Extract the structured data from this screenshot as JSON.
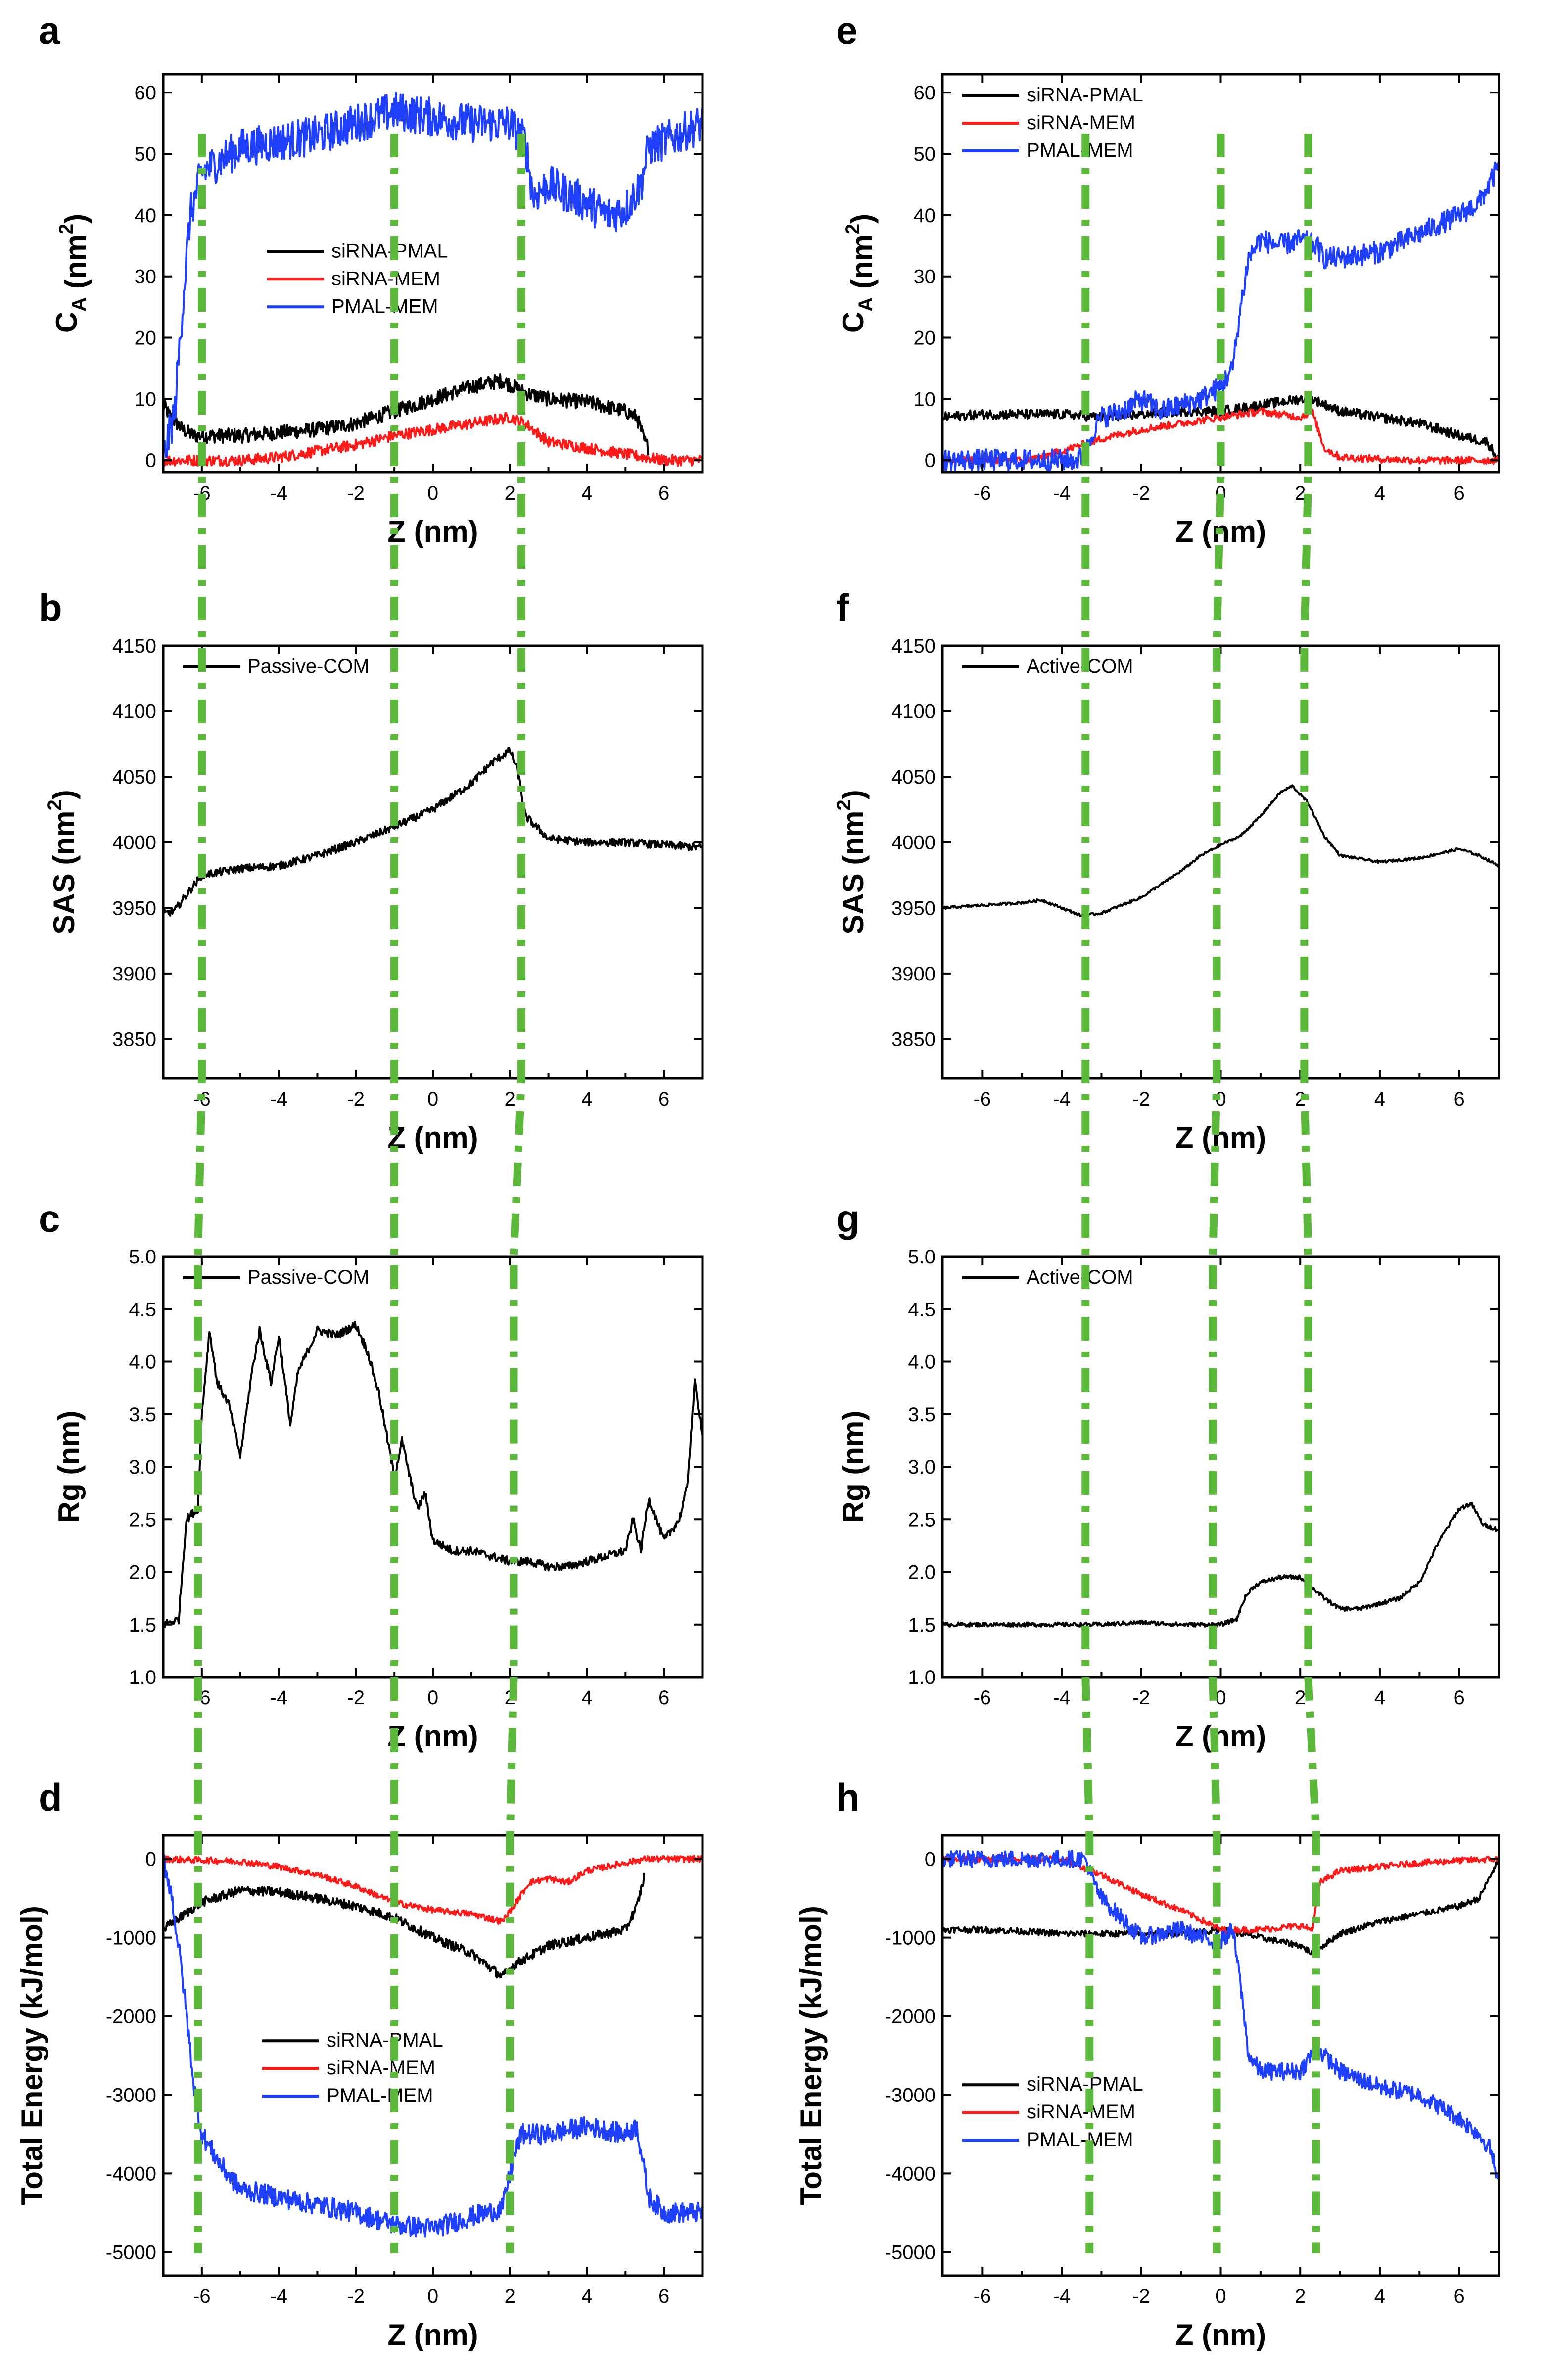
{
  "colors": {
    "siRNA-PMAL": "#000000",
    "siRNA-MEM": "#ff1a1a",
    "PMAL-MEM": "#1f3fff",
    "single": "#000000",
    "guide": "#5cb83a"
  },
  "chart_data": [
    {
      "id": "a",
      "panel_label": "a",
      "type": "line",
      "xlabel": "Z (nm)",
      "ylabel": {
        "base": "C",
        "sub": "A",
        "unit": " (nm",
        "sup": "2",
        "close": ")"
      },
      "xlim": [
        -7,
        7
      ],
      "ylim": [
        -2,
        63
      ],
      "xticks": [
        -6,
        -4,
        -2,
        0,
        2,
        4,
        6
      ],
      "yticks": [
        0,
        10,
        20,
        30,
        40,
        50,
        60
      ],
      "legend_pos": "center-left",
      "series": [
        {
          "name": "siRNA-PMAL",
          "color_key": "siRNA-PMAL",
          "noise": 1.2,
          "x": [
            -7,
            -6.8,
            -6.5,
            -6.2,
            -6,
            -5,
            -4,
            -3,
            -2,
            -1,
            0,
            1,
            1.8,
            2.4,
            3,
            4,
            5,
            5.3,
            5.5,
            5.6
          ],
          "y": [
            9,
            7,
            5,
            4,
            4,
            4,
            4.5,
            5,
            6,
            8,
            10,
            12,
            13,
            11,
            10,
            9.5,
            8,
            7,
            3,
            2
          ]
        },
        {
          "name": "siRNA-MEM",
          "color_key": "siRNA-MEM",
          "noise": 0.9,
          "x": [
            -7,
            -5,
            -4,
            -3,
            -2,
            -1,
            0,
            1,
            2,
            2.4,
            3,
            4,
            5,
            5.5,
            6,
            7
          ],
          "y": [
            0,
            0,
            0.5,
            1.5,
            2.5,
            4,
            5,
            6,
            7,
            6,
            3,
            2,
            1,
            0.5,
            0,
            0
          ]
        },
        {
          "name": "PMAL-MEM",
          "color_key": "PMAL-MEM",
          "noise": 3.2,
          "x": [
            -7,
            -6.7,
            -6.5,
            -6.3,
            -6,
            -5.5,
            -5,
            -4,
            -3,
            -2,
            -1,
            0,
            1,
            2,
            2.4,
            2.6,
            3,
            4,
            4.5,
            5,
            5.4,
            5.6,
            6,
            7
          ],
          "y": [
            0,
            8,
            25,
            40,
            47,
            49,
            51,
            52,
            53,
            55,
            57,
            56,
            55,
            55,
            52,
            43,
            45,
            42,
            40,
            41,
            45,
            51,
            52,
            55
          ]
        }
      ],
      "guides_x": [
        -6,
        -1,
        2.3
      ]
    },
    {
      "id": "b",
      "panel_label": "b",
      "type": "line",
      "xlabel": "Z (nm)",
      "ylabel": {
        "base": "SAS",
        "sub": "",
        "unit": " (nm",
        "sup": "2",
        "close": ")"
      },
      "xlim": [
        -7,
        7
      ],
      "ylim": [
        3820,
        4150
      ],
      "xticks": [
        -6,
        -4,
        -2,
        0,
        2,
        4,
        6
      ],
      "yticks": [
        3850,
        3900,
        3950,
        4000,
        4050,
        4100,
        4150
      ],
      "legend_pos": "top-left",
      "series": [
        {
          "name": "Passive-COM",
          "color_key": "single",
          "noise": 3,
          "x": [
            -7,
            -6.7,
            -6.4,
            -6,
            -5,
            -4,
            -3,
            -2,
            -1,
            0,
            1,
            1.5,
            2,
            2.2,
            2.4,
            3,
            4,
            5,
            6,
            7
          ],
          "y": [
            3945,
            3948,
            3960,
            3975,
            3980,
            3982,
            3990,
            4000,
            4012,
            4025,
            4045,
            4060,
            4070,
            4055,
            4020,
            4003,
            4000,
            4000,
            3998,
            3996
          ]
        }
      ],
      "guides_x": [
        -6,
        -1,
        2.3
      ]
    },
    {
      "id": "c",
      "panel_label": "c",
      "type": "line",
      "xlabel": "Z (nm)",
      "ylabel": {
        "base": "Rg (nm)",
        "sub": "",
        "unit": "",
        "sup": "",
        "close": ""
      },
      "xlim": [
        -7,
        7
      ],
      "ylim": [
        1.0,
        5.0
      ],
      "xticks": [
        -6,
        -4,
        -2,
        0,
        2,
        4,
        6
      ],
      "yticks": [
        1.0,
        1.5,
        2.0,
        2.5,
        3.0,
        3.5,
        4.0,
        4.5,
        5.0
      ],
      "legend_pos": "top-left",
      "series": [
        {
          "name": "Passive-COM",
          "color_key": "single",
          "noise": 0.04,
          "x": [
            -7,
            -6.6,
            -6.4,
            -6.1,
            -6,
            -5.8,
            -5.6,
            -5.3,
            -5,
            -4.7,
            -4.5,
            -4.2,
            -4,
            -3.7,
            -3.5,
            -3,
            -2.5,
            -2,
            -1.7,
            -1.4,
            -1.2,
            -1,
            -0.8,
            -0.6,
            -0.4,
            -0.2,
            0,
            0.5,
            1,
            1.5,
            2,
            2.5,
            3,
            3.5,
            4,
            4.5,
            5,
            5.2,
            5.4,
            5.6,
            6,
            6.4,
            6.6,
            6.8,
            7
          ],
          "y": [
            1.5,
            1.55,
            2.5,
            2.6,
            3.5,
            4.3,
            3.8,
            3.6,
            3.1,
            3.9,
            4.3,
            3.8,
            4.25,
            3.4,
            3.9,
            4.3,
            4.25,
            4.35,
            4.1,
            3.7,
            3.3,
            2.9,
            3.25,
            2.9,
            2.6,
            2.75,
            2.3,
            2.2,
            2.2,
            2.15,
            2.1,
            2.1,
            2.05,
            2.05,
            2.1,
            2.15,
            2.2,
            2.5,
            2.2,
            2.7,
            2.3,
            2.5,
            2.8,
            3.8,
            3.3
          ]
        }
      ],
      "guides_x": [
        -6.1,
        -1,
        2.1
      ]
    },
    {
      "id": "d",
      "panel_label": "d",
      "type": "line",
      "xlabel": "Z (nm)",
      "ylabel": {
        "base": "Total Energy (kJ/mol)",
        "sub": "",
        "unit": "",
        "sup": "",
        "close": ""
      },
      "xlim": [
        -7,
        7
      ],
      "ylim": [
        -5300,
        300
      ],
      "xticks": [
        -6,
        -4,
        -2,
        0,
        2,
        4,
        6
      ],
      "yticks": [
        0,
        -1000,
        -2000,
        -3000,
        -4000,
        -5000
      ],
      "legend_pos": "center",
      "series": [
        {
          "name": "siRNA-PMAL",
          "color_key": "siRNA-PMAL",
          "noise": 60,
          "x": [
            -7,
            -6,
            -5,
            -4,
            -3,
            -2,
            -1,
            0,
            1,
            1.8,
            2.1,
            3,
            4,
            4.5,
            5,
            5.3,
            5.5
          ],
          "y": [
            -900,
            -550,
            -400,
            -420,
            -500,
            -600,
            -750,
            -1000,
            -1200,
            -1500,
            -1350,
            -1100,
            -1000,
            -950,
            -900,
            -600,
            -200
          ]
        },
        {
          "name": "siRNA-MEM",
          "color_key": "siRNA-MEM",
          "noise": 40,
          "x": [
            -7,
            -5,
            -4,
            -3,
            -2,
            -1,
            0,
            1,
            1.8,
            2.1,
            2.5,
            3,
            3.5,
            4,
            5,
            5.5,
            7
          ],
          "y": [
            0,
            -30,
            -100,
            -200,
            -350,
            -550,
            -650,
            -700,
            -800,
            -600,
            -300,
            -250,
            -300,
            -150,
            -50,
            0,
            0
          ]
        },
        {
          "name": "PMAL-MEM",
          "color_key": "PMAL-MEM",
          "noise": 130,
          "x": [
            -7,
            -6.8,
            -6.5,
            -6.2,
            -6,
            -5.5,
            -5,
            -4,
            -3,
            -2,
            -1,
            0,
            1,
            1.8,
            2.1,
            2.3,
            3,
            4,
            5,
            5.3,
            5.6,
            6,
            7
          ],
          "y": [
            0,
            -400,
            -1500,
            -2900,
            -3500,
            -3900,
            -4200,
            -4300,
            -4400,
            -4500,
            -4650,
            -4700,
            -4550,
            -4450,
            -3800,
            -3500,
            -3500,
            -3400,
            -3500,
            -3400,
            -4300,
            -4500,
            -4500
          ]
        }
      ],
      "guides_x": [
        -6.1,
        -1,
        2
      ]
    },
    {
      "id": "e",
      "panel_label": "e",
      "type": "line",
      "xlabel": "Z (nm)",
      "ylabel": {
        "base": "C",
        "sub": "A",
        "unit": " (nm",
        "sup": "2",
        "close": ")"
      },
      "xlim": [
        -7,
        7
      ],
      "ylim": [
        -2,
        63
      ],
      "xticks": [
        -6,
        -4,
        -2,
        0,
        2,
        4,
        6
      ],
      "yticks": [
        0,
        10,
        20,
        30,
        40,
        50,
        60
      ],
      "legend_pos": "top-left",
      "series": [
        {
          "name": "siRNA-PMAL",
          "color_key": "siRNA-PMAL",
          "noise": 0.8,
          "x": [
            -7,
            -6,
            -5,
            -4,
            -3,
            -2,
            -1,
            0,
            1,
            2,
            2.3,
            3,
            4,
            5,
            6,
            6.7,
            7
          ],
          "y": [
            7,
            7.5,
            7.5,
            7.5,
            7,
            7.5,
            8,
            8,
            9,
            10,
            10,
            8,
            7,
            6,
            4,
            3,
            0
          ]
        },
        {
          "name": "siRNA-MEM",
          "color_key": "siRNA-MEM",
          "noise": 0.6,
          "x": [
            -7,
            -5.5,
            -5,
            -4.5,
            -4,
            -3.5,
            -3,
            -2,
            -1,
            0,
            1,
            2,
            2.3,
            2.6,
            3,
            4,
            5,
            6,
            7
          ],
          "y": [
            0,
            0,
            0,
            0.5,
            1.5,
            2.5,
            3.5,
            5,
            6,
            7,
            8,
            7,
            8,
            2,
            0.5,
            0.2,
            0,
            0,
            0
          ]
        },
        {
          "name": "PMAL-MEM",
          "color_key": "PMAL-MEM",
          "noise": 1.8,
          "x": [
            -7,
            -3.6,
            -3.4,
            -3.2,
            -3,
            -2.5,
            -2,
            -1.5,
            -1,
            -0.5,
            0,
            0.3,
            0.5,
            0.7,
            1,
            1.5,
            2,
            2.4,
            2.6,
            3,
            4,
            5,
            6,
            6.5,
            7
          ],
          "y": [
            0,
            0,
            1,
            5,
            7,
            8,
            10,
            8,
            9,
            10,
            12,
            15,
            25,
            33,
            36,
            35,
            36,
            35,
            33,
            33,
            34,
            37,
            40,
            42,
            48
          ]
        }
      ],
      "guides_x": [
        -3.4,
        0,
        2.2
      ]
    },
    {
      "id": "f",
      "panel_label": "f",
      "type": "line",
      "xlabel": "Z (nm)",
      "ylabel": {
        "base": "SAS",
        "sub": "",
        "unit": " (nm",
        "sup": "2",
        "close": ")"
      },
      "xlim": [
        -7,
        7
      ],
      "ylim": [
        3820,
        4150
      ],
      "xticks": [
        -6,
        -4,
        -2,
        0,
        2,
        4,
        6
      ],
      "yticks": [
        3850,
        3900,
        3950,
        4000,
        4050,
        4100,
        4150
      ],
      "legend_pos": "top-left",
      "series": [
        {
          "name": "Active-COM",
          "color_key": "single",
          "noise": 1,
          "x": [
            -7,
            -6,
            -5,
            -4.5,
            -4,
            -3.5,
            -3,
            -2,
            -1,
            -0.5,
            0,
            0.5,
            1,
            1.5,
            1.8,
            2.2,
            2.6,
            3,
            4,
            5,
            6,
            6.5,
            7
          ],
          "y": [
            3950,
            3952,
            3954,
            3956,
            3950,
            3944,
            3946,
            3958,
            3978,
            3990,
            3998,
            4005,
            4020,
            4038,
            4043,
            4030,
            4005,
            3990,
            3985,
            3988,
            3995,
            3990,
            3982
          ]
        }
      ],
      "guides_x": [
        -3.4,
        -0.1,
        2.1
      ]
    },
    {
      "id": "g",
      "panel_label": "g",
      "type": "line",
      "xlabel": "Z (nm)",
      "ylabel": {
        "base": "Rg (nm)",
        "sub": "",
        "unit": "",
        "sup": "",
        "close": ""
      },
      "xlim": [
        -7,
        7
      ],
      "ylim": [
        1.0,
        5.0
      ],
      "xticks": [
        -6,
        -4,
        -2,
        0,
        2,
        4,
        6
      ],
      "yticks": [
        1.0,
        1.5,
        2.0,
        2.5,
        3.0,
        3.5,
        4.0,
        4.5,
        5.0
      ],
      "legend_pos": "top-left",
      "series": [
        {
          "name": "Active-COM",
          "color_key": "single",
          "noise": 0.02,
          "x": [
            -7,
            -5,
            -3,
            -2,
            -1,
            0,
            0.4,
            0.6,
            0.8,
            1,
            1.5,
            2,
            2.3,
            2.6,
            3,
            3.5,
            4,
            4.5,
            5,
            5.5,
            6,
            6.3,
            6.6,
            7
          ],
          "y": [
            1.5,
            1.5,
            1.5,
            1.52,
            1.5,
            1.5,
            1.55,
            1.75,
            1.85,
            1.9,
            1.95,
            1.95,
            1.85,
            1.75,
            1.65,
            1.65,
            1.7,
            1.75,
            1.9,
            2.3,
            2.6,
            2.65,
            2.45,
            2.4
          ]
        }
      ],
      "guides_x": [
        -3.4,
        -0.2,
        2.2
      ]
    },
    {
      "id": "h",
      "panel_label": "h",
      "type": "line",
      "xlabel": "Z (nm)",
      "ylabel": {
        "base": "Total Energy (kJ/mol)",
        "sub": "",
        "unit": "",
        "sup": "",
        "close": ""
      },
      "xlim": [
        -7,
        7
      ],
      "ylim": [
        -5300,
        300
      ],
      "xticks": [
        -6,
        -4,
        -2,
        0,
        2,
        4,
        6
      ],
      "yticks": [
        0,
        -1000,
        -2000,
        -3000,
        -4000,
        -5000
      ],
      "legend_pos": "bottom-left",
      "series": [
        {
          "name": "siRNA-PMAL",
          "color_key": "siRNA-PMAL",
          "noise": 40,
          "x": [
            -7,
            -6,
            -5,
            -4,
            -3,
            -2,
            -1,
            0,
            1,
            2,
            2.3,
            3,
            4,
            5,
            6,
            6.5,
            7
          ],
          "y": [
            -900,
            -900,
            -920,
            -950,
            -950,
            -950,
            -950,
            -900,
            -1000,
            -1100,
            -1200,
            -950,
            -800,
            -700,
            -600,
            -500,
            0
          ]
        },
        {
          "name": "siRNA-MEM",
          "color_key": "siRNA-MEM",
          "noise": 40,
          "x": [
            -7,
            -4,
            -3,
            -2,
            -1,
            0,
            1,
            2,
            2.3,
            2.5,
            3,
            4,
            5,
            6,
            7
          ],
          "y": [
            0,
            0,
            -200,
            -450,
            -650,
            -900,
            -900,
            -850,
            -900,
            -300,
            -150,
            -100,
            -50,
            -20,
            0
          ]
        },
        {
          "name": "PMAL-MEM",
          "color_key": "PMAL-MEM",
          "noise": 110,
          "x": [
            -7,
            -3.4,
            -3.2,
            -3,
            -2,
            -1,
            -0.5,
            0,
            0.3,
            0.5,
            0.7,
            1,
            2,
            2.4,
            3,
            4,
            5,
            6,
            6.5,
            6.8,
            7
          ],
          "y": [
            0,
            0,
            -300,
            -500,
            -1000,
            -900,
            -1000,
            -1050,
            -900,
            -1600,
            -2500,
            -2700,
            -2700,
            -2400,
            -2700,
            -2900,
            -3000,
            -3300,
            -3500,
            -3700,
            -4200
          ]
        }
      ],
      "guides_x": [
        -3.3,
        -0.1,
        2.4
      ]
    }
  ]
}
